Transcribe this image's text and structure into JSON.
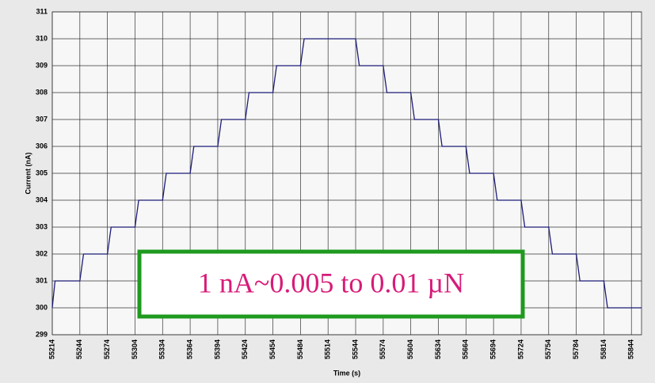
{
  "chart_data": {
    "type": "line",
    "xlabel": "Time (s)",
    "ylabel": "Current (nA)",
    "x": [
      55214,
      55217,
      55244,
      55248,
      55274,
      55278,
      55304,
      55308,
      55334,
      55338,
      55364,
      55368,
      55394,
      55398,
      55424,
      55428,
      55454,
      55458,
      55484,
      55488,
      55544,
      55548,
      55574,
      55578,
      55604,
      55608,
      55634,
      55638,
      55664,
      55668,
      55694,
      55698,
      55724,
      55728,
      55754,
      55758,
      55784,
      55788,
      55814,
      55818,
      55855
    ],
    "series": [
      {
        "color": "#1c1c7a",
        "values": [
          300,
          301,
          301,
          302,
          302,
          303,
          303,
          304,
          304,
          305,
          305,
          306,
          306,
          307,
          307,
          308,
          308,
          309,
          309,
          310,
          310,
          309,
          309,
          308,
          308,
          307,
          307,
          306,
          306,
          305,
          305,
          304,
          304,
          303,
          303,
          302,
          302,
          301,
          301,
          300,
          300
        ]
      }
    ],
    "xlim": [
      55214,
      55855
    ],
    "ylim": [
      299,
      311
    ],
    "xticks": [
      55214,
      55244,
      55274,
      55304,
      55334,
      55364,
      55394,
      55424,
      55454,
      55484,
      55514,
      55544,
      55574,
      55604,
      55634,
      55664,
      55694,
      55724,
      55754,
      55784,
      55814,
      55844
    ],
    "yticks": [
      299,
      300,
      301,
      302,
      303,
      304,
      305,
      306,
      307,
      308,
      309,
      310,
      311
    ],
    "grid": true,
    "annotation": "1 nA~0.005 to 0.01 µN"
  }
}
